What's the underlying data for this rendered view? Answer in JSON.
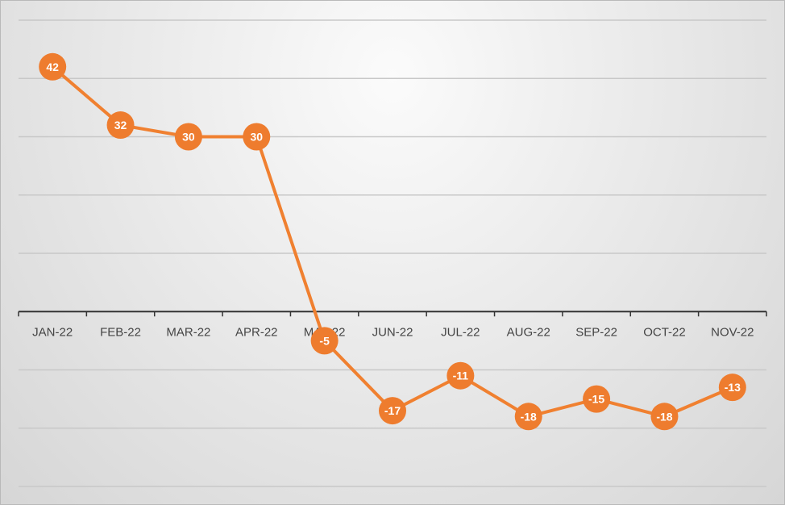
{
  "chart_data": {
    "type": "line",
    "title": "",
    "xlabel": "",
    "ylabel": "",
    "categories": [
      "JAN-22",
      "FEB-22",
      "MAR-22",
      "APR-22",
      "MAY-22",
      "JUN-22",
      "JUL-22",
      "AUG-22",
      "SEP-22",
      "OCT-22",
      "NOV-22"
    ],
    "series": [
      {
        "values": [
          42,
          32,
          30,
          30,
          -5,
          -17,
          -11,
          -18,
          -15,
          -18,
          -13
        ]
      }
    ],
    "ylim": [
      -30,
      50
    ],
    "gridline_step": 10,
    "grid": true,
    "legend": "none",
    "data_labels": true,
    "axis_labels_position": "at zero line",
    "colors": {
      "series": "#f08030",
      "marker": "#ee7c2e",
      "grid": "#c8c8c8",
      "zero_axis": "#333333"
    }
  }
}
